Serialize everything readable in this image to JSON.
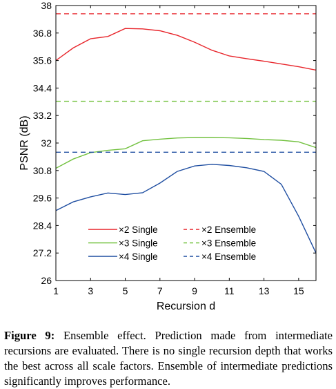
{
  "chart_data": {
    "type": "line",
    "title": "",
    "xlabel": "Recursion d",
    "ylabel": "PSNR (dB)",
    "xlim": [
      1,
      16
    ],
    "ylim": [
      26,
      38
    ],
    "x_ticks": [
      1,
      3,
      5,
      7,
      9,
      11,
      13,
      15
    ],
    "y_ticks": [
      26,
      27.2,
      28.4,
      29.6,
      30.8,
      32,
      33.2,
      34.4,
      35.6,
      36.8,
      38
    ],
    "grid": false,
    "legend_position": "bottom-left",
    "x": [
      1,
      2,
      3,
      4,
      5,
      6,
      7,
      8,
      9,
      10,
      11,
      12,
      13,
      14,
      15,
      16
    ],
    "series": [
      {
        "name": "×2 Single",
        "style": "solid",
        "color": "#e8252b",
        "values": [
          35.6,
          36.15,
          36.55,
          36.65,
          37.0,
          36.98,
          36.9,
          36.7,
          36.4,
          36.05,
          35.8,
          35.68,
          35.57,
          35.45,
          35.33,
          35.18
        ]
      },
      {
        "name": "×3 Single",
        "style": "solid",
        "color": "#72c13f",
        "values": [
          30.9,
          31.3,
          31.58,
          31.68,
          31.75,
          32.1,
          32.17,
          32.22,
          32.24,
          32.24,
          32.23,
          32.2,
          32.15,
          32.12,
          32.05,
          31.8
        ]
      },
      {
        "name": "×4 Single",
        "style": "solid",
        "color": "#1f4ea1",
        "values": [
          29.05,
          29.43,
          29.65,
          29.82,
          29.75,
          29.83,
          30.25,
          30.76,
          31.0,
          31.07,
          31.02,
          30.92,
          30.76,
          30.2,
          28.8,
          27.2
        ]
      },
      {
        "name": "×2 Ensemble",
        "style": "dashed",
        "color": "#e8252b",
        "values": [
          37.64,
          37.64,
          37.64,
          37.64,
          37.64,
          37.64,
          37.64,
          37.64,
          37.64,
          37.64,
          37.64,
          37.64,
          37.64,
          37.64,
          37.64,
          37.64
        ]
      },
      {
        "name": "×3 Ensemble",
        "style": "dashed",
        "color": "#72c13f",
        "values": [
          33.82,
          33.82,
          33.82,
          33.82,
          33.82,
          33.82,
          33.82,
          33.82,
          33.82,
          33.82,
          33.82,
          33.82,
          33.82,
          33.82,
          33.82,
          33.82
        ]
      },
      {
        "name": "×4 Ensemble",
        "style": "dashed",
        "color": "#1f4ea1",
        "values": [
          31.6,
          31.6,
          31.6,
          31.6,
          31.6,
          31.6,
          31.6,
          31.6,
          31.6,
          31.6,
          31.6,
          31.6,
          31.6,
          31.6,
          31.6,
          31.6
        ]
      }
    ]
  },
  "caption": {
    "label": "Figure 9:",
    "text": "Ensemble effect. Prediction made from intermediate recursions are evaluated. There is no single recursion depth that works the best across all scale factors. Ensemble of intermediate predictions significantly improves performance."
  }
}
